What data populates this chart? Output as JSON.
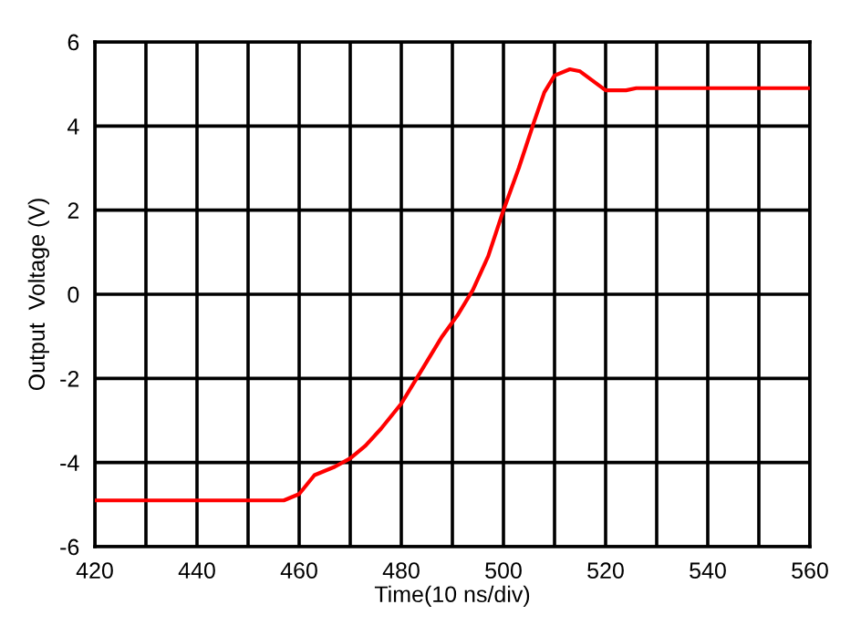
{
  "chart_data": {
    "type": "line",
    "xlabel": "Time(10 ns/div)",
    "ylabel": "Output  Voltage (V)",
    "x": [
      420,
      440,
      457,
      460,
      463,
      467,
      470,
      473,
      476,
      480,
      484,
      488,
      491,
      494,
      497,
      500,
      503,
      506,
      508,
      510,
      513,
      515,
      520,
      524,
      526,
      530,
      540,
      550,
      560
    ],
    "series": [
      {
        "color": "#ff0000",
        "values": [
          -4.9,
          -4.9,
          -4.9,
          -4.75,
          -4.3,
          -4.1,
          -3.9,
          -3.6,
          -3.2,
          -2.6,
          -1.8,
          -1.0,
          -0.5,
          0.1,
          0.9,
          2.0,
          3.0,
          4.1,
          4.8,
          5.2,
          5.35,
          5.3,
          4.85,
          4.85,
          4.9,
          4.9,
          4.9,
          4.9,
          4.9
        ]
      }
    ],
    "xlim": [
      420,
      560
    ],
    "ylim": [
      -6,
      6
    ],
    "xticks": [
      420,
      {
        "value": 430,
        "label": null
      },
      440,
      {
        "value": 450,
        "label": null
      },
      460,
      {
        "value": 470,
        "label": null
      },
      480,
      {
        "value": 490,
        "label": null
      },
      500,
      {
        "value": 510,
        "label": null
      },
      520,
      {
        "value": 530,
        "label": null
      },
      540,
      {
        "value": 550,
        "label": null
      },
      560
    ],
    "yticks": [
      -6,
      -4,
      -2,
      0,
      2,
      4,
      6
    ],
    "grid": true,
    "line_style": "solid",
    "marker": "none"
  }
}
